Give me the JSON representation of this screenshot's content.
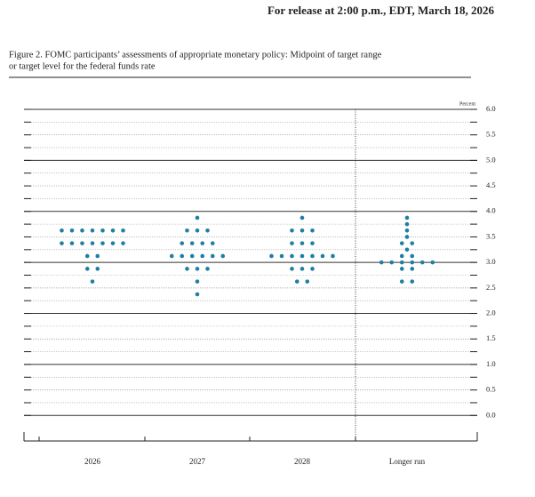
{
  "header": "For release at 2:00 p.m., EDT, March 18, 2026",
  "chart_data": {
    "type": "dot",
    "title_lines": [
      "Figure 2. FOMC participants’ assessments of appropriate monetary policy: Midpoint of target range",
      "or target level for the federal funds rate"
    ],
    "y_label": "Percent",
    "categories": [
      "2026",
      "2027",
      "2028",
      "Longer run"
    ],
    "dots": [
      [
        3.625,
        3.625,
        3.625,
        3.625,
        3.625,
        3.625,
        3.625,
        3.375,
        3.375,
        3.375,
        3.375,
        3.375,
        3.375,
        3.375,
        3.125,
        3.125,
        2.875,
        2.875,
        2.625
      ],
      [
        3.875,
        3.625,
        3.625,
        3.625,
        3.375,
        3.375,
        3.375,
        3.375,
        3.125,
        3.125,
        3.125,
        3.125,
        3.125,
        3.125,
        2.875,
        2.875,
        2.875,
        2.625,
        2.375
      ],
      [
        3.875,
        3.625,
        3.625,
        3.625,
        3.375,
        3.375,
        3.375,
        3.125,
        3.125,
        3.125,
        3.125,
        3.125,
        3.125,
        3.125,
        2.875,
        2.875,
        2.875,
        2.625,
        2.625
      ],
      [
        3.875,
        3.75,
        3.625,
        3.5,
        3.375,
        3.375,
        3.25,
        3.125,
        3.125,
        3,
        3,
        3,
        3,
        3,
        3,
        2.875,
        2.875,
        2.625,
        2.625
      ]
    ],
    "color": "#1f7fa3",
    "ylim": [
      -0.5,
      6.0
    ],
    "yticks": [
      {
        "value": 0,
        "label": "0.0"
      },
      0.5,
      {
        "value": 1,
        "label": "1.0"
      },
      1.5,
      {
        "value": 2,
        "label": "2.0"
      },
      2.5,
      {
        "value": 3,
        "label": "3.0"
      },
      3.5,
      {
        "value": 4,
        "label": "4.0"
      },
      4.5,
      {
        "value": 5,
        "label": "5.0"
      },
      5.5,
      {
        "value": 6,
        "label": "6.0"
      }
    ],
    "minor_yticks": [
      0.25,
      0.75,
      1.25,
      1.75,
      2.25,
      2.75,
      3.25,
      3.75,
      4.25,
      4.75,
      5.25,
      5.75
    ],
    "grid": true
  }
}
